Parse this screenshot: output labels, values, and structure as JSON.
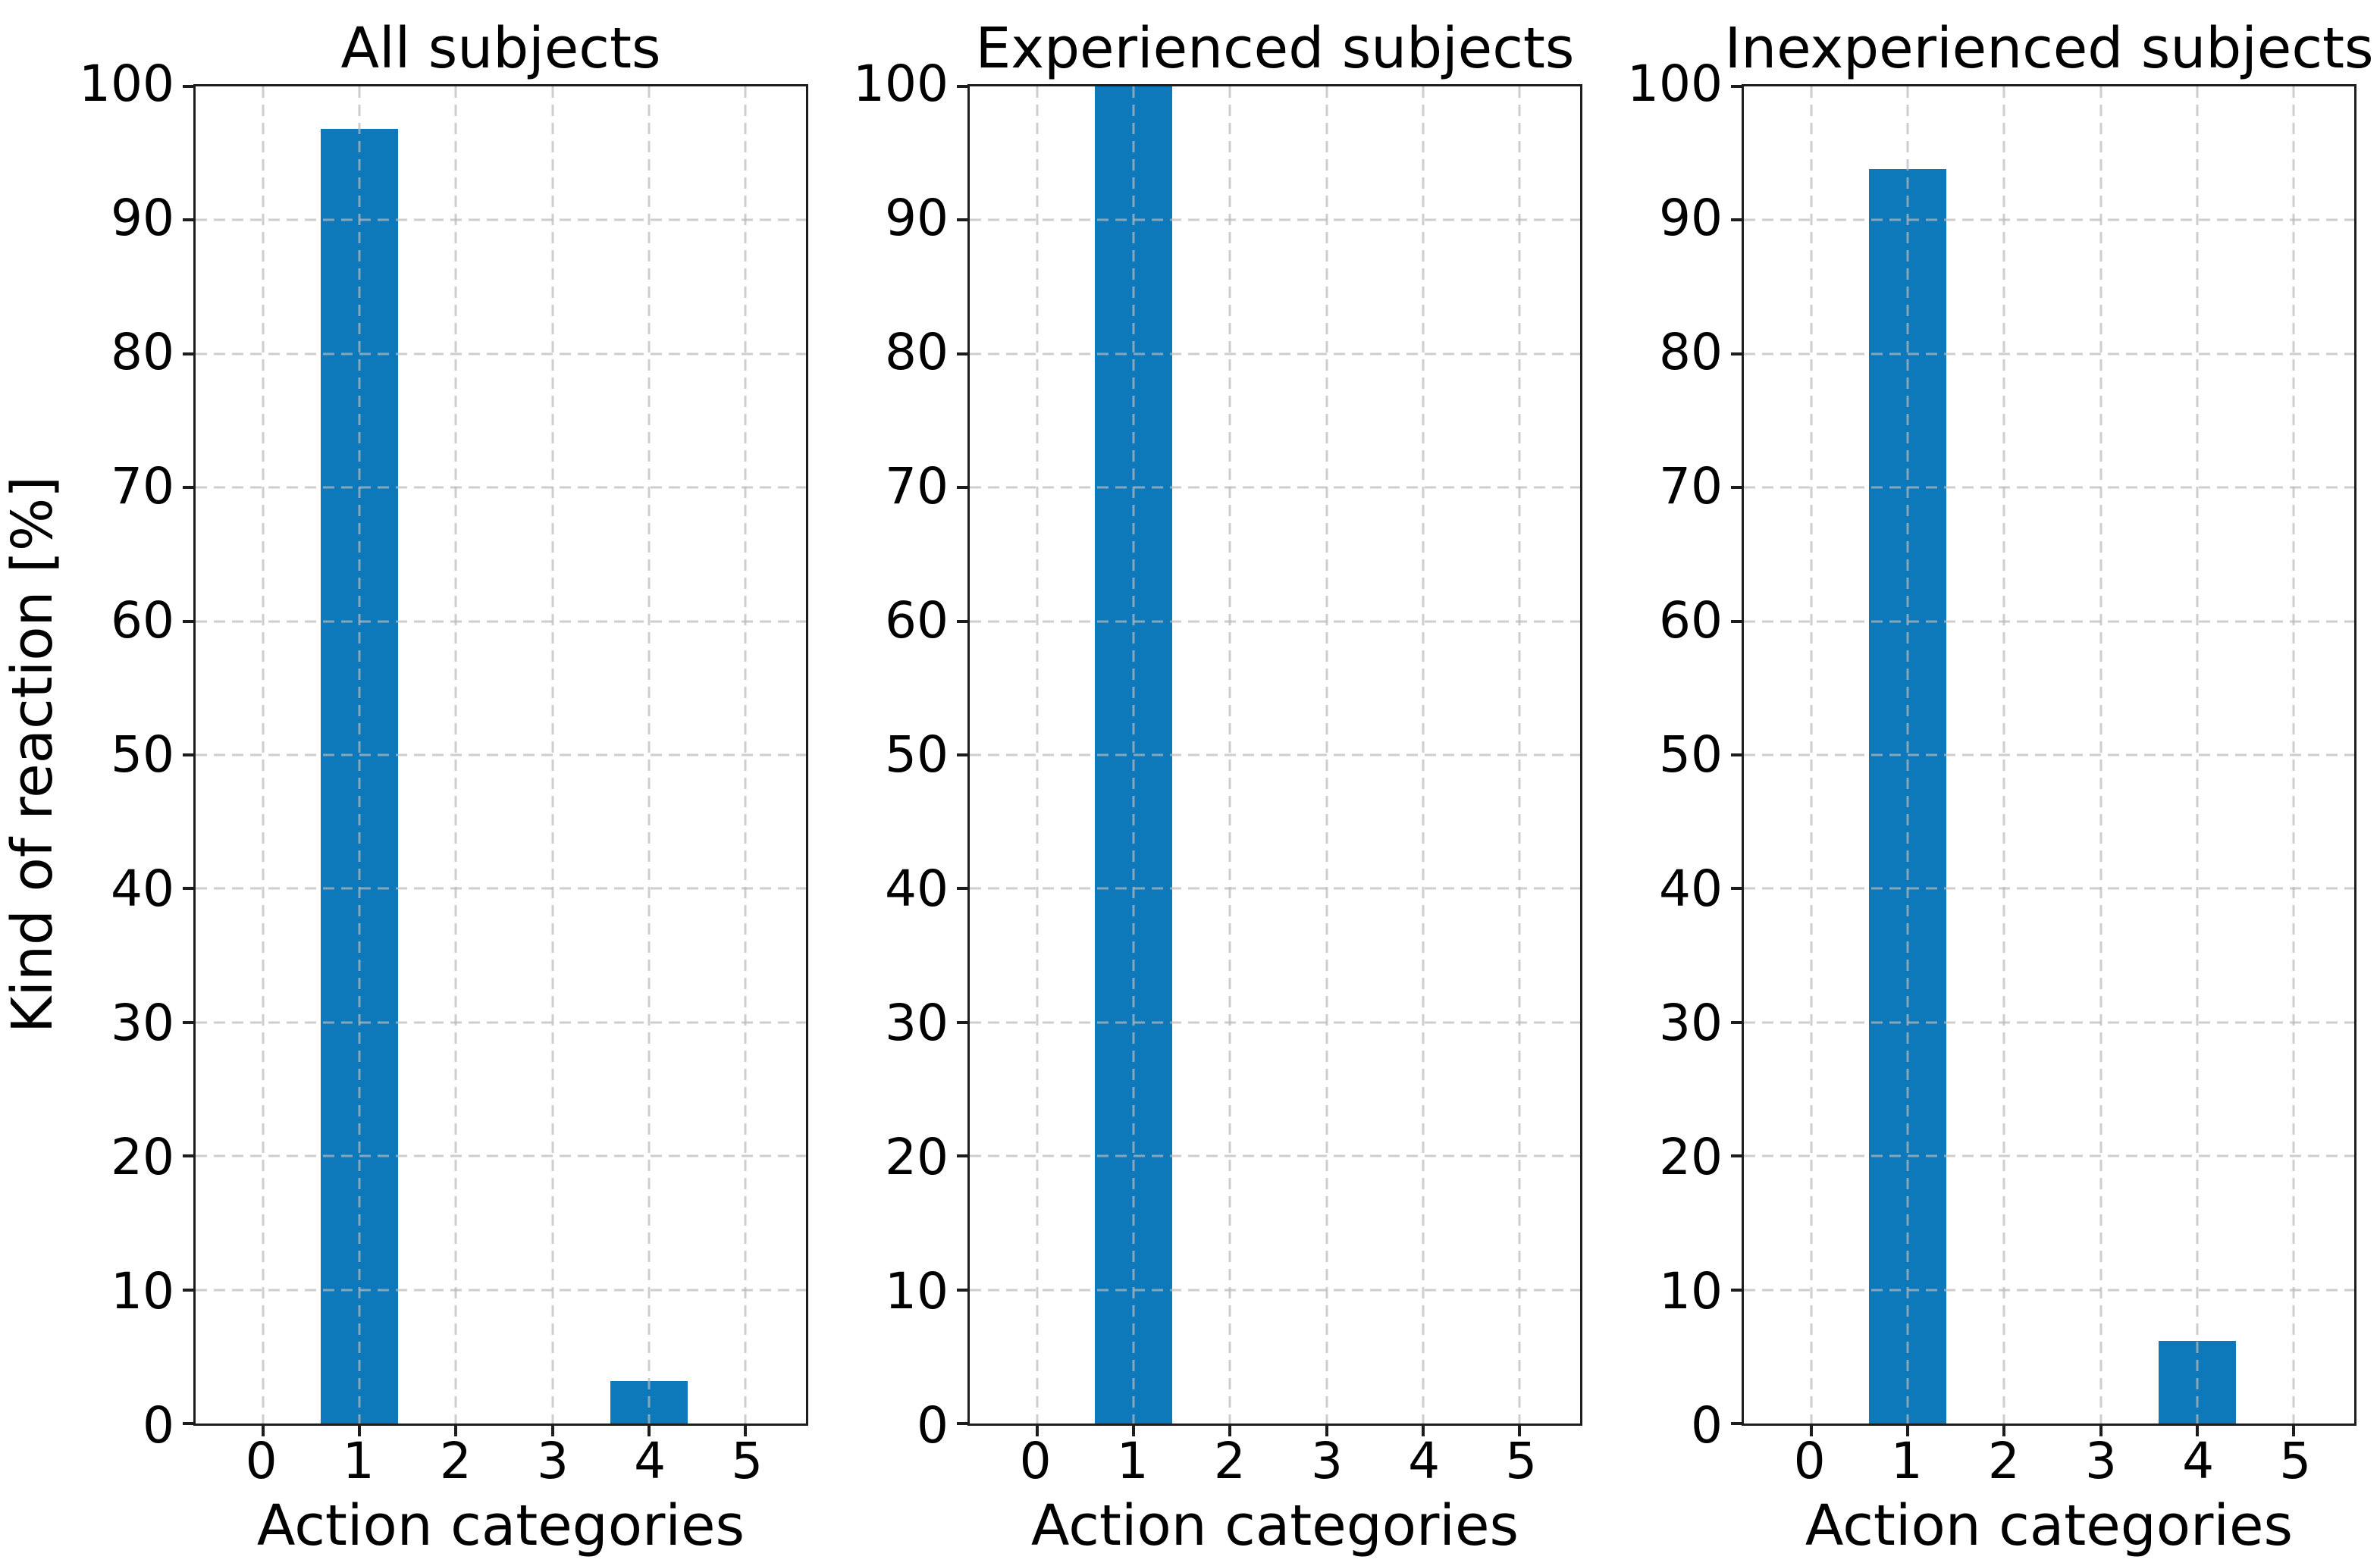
{
  "figure": {
    "ylabel": "Kind of reaction [%]",
    "xlabel": "Action categories"
  },
  "layout": {
    "xlim": [
      -0.7,
      5.63
    ],
    "ylim": [
      0,
      100
    ],
    "xticks": [
      0,
      1,
      2,
      3,
      4,
      5
    ],
    "yticks": [
      0,
      10,
      20,
      30,
      40,
      50,
      60,
      70,
      80,
      90,
      100
    ],
    "bar_width": 0.8,
    "grid": true,
    "grid_style": "dashed",
    "legend": "none"
  },
  "style": {
    "bar_color": "#0d79ba",
    "grid_color": "#c8c8c8",
    "spine_color": "#1d1d1d",
    "text_color": "#000000",
    "background": "#ffffff"
  },
  "chart_data": [
    {
      "type": "bar",
      "title": "All subjects",
      "categories": [
        0,
        1,
        2,
        3,
        4,
        5
      ],
      "values": [
        0,
        96.8,
        0,
        0,
        3.2,
        0
      ],
      "xlabel": "Action categories",
      "ylabel": "Kind of reaction [%]",
      "ylim": [
        0,
        100
      ]
    },
    {
      "type": "bar",
      "title": "Experienced subjects",
      "categories": [
        0,
        1,
        2,
        3,
        4,
        5
      ],
      "values": [
        0,
        100,
        0,
        0,
        0,
        0
      ],
      "xlabel": "Action categories",
      "ylabel": "",
      "ylim": [
        0,
        100
      ]
    },
    {
      "type": "bar",
      "title": "Inexperienced subjects",
      "categories": [
        0,
        1,
        2,
        3,
        4,
        5
      ],
      "values": [
        0,
        93.8,
        0,
        0,
        6.2,
        0
      ],
      "xlabel": "Action categories",
      "ylabel": "",
      "ylim": [
        0,
        100
      ]
    }
  ]
}
